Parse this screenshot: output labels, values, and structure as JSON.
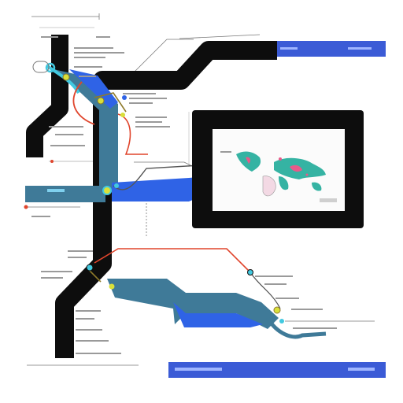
{
  "diagram": {
    "kind": "pipeline-schematic",
    "text_legibility": "illegible",
    "colors": {
      "background": "#ffffff",
      "track": "#0d0d0d",
      "teal": "#3f7a98",
      "blue": "#2f63e6",
      "blue_bar": "#3b5bd6",
      "red": "#e0452c",
      "olive": "#8e7a2a",
      "annotation": "#555555",
      "monitor_frame": "#0d0d0d",
      "monitor_screen": "#fbfbfb",
      "map_land": "#35b3a3",
      "map_accent": "#e85a8a",
      "joint_yellow": "#d9e03a",
      "joint_cyan": "#42c9e0"
    },
    "icons": [
      "world-map-icon",
      "pin-icon",
      "connector-node-icon"
    ]
  }
}
